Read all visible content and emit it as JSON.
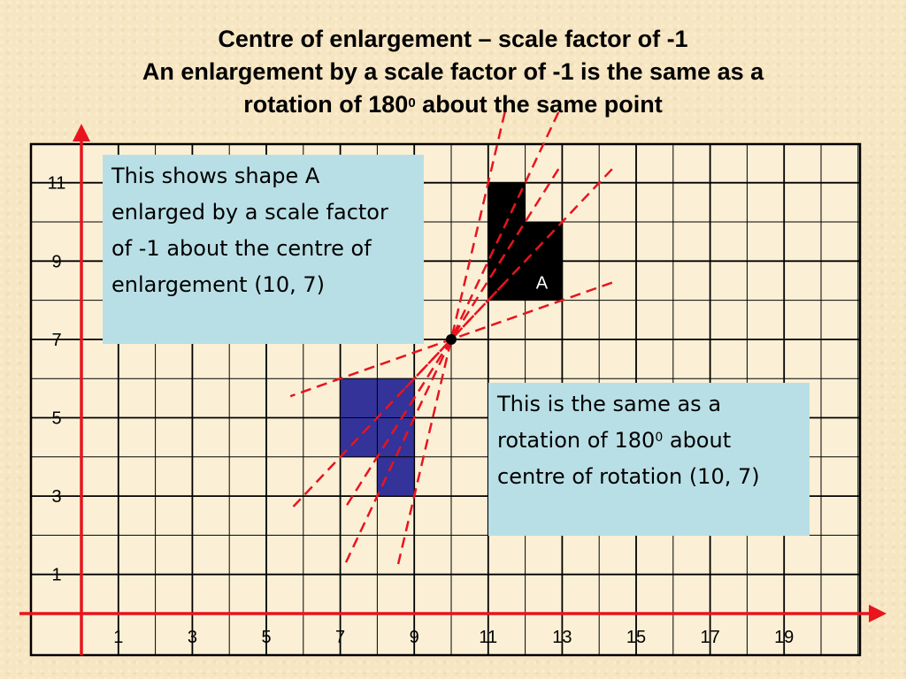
{
  "title": {
    "line1": "Centre of enlargement – scale factor of -1",
    "line2": "An enlargement by a scale factor of -1 is the same as a",
    "line3_pre": "rotation of 180",
    "line3_sup": "0",
    "line3_post": " about the same point"
  },
  "diagram": {
    "x_range": [
      0,
      21
    ],
    "y_range": [
      0,
      12
    ],
    "x_tick_labels": [
      "1",
      "3",
      "5",
      "7",
      "9",
      "11",
      "13",
      "15",
      "17",
      "19"
    ],
    "y_tick_labels": [
      "1",
      "3",
      "5",
      "7",
      "9",
      "11"
    ],
    "centre": [
      10,
      7
    ],
    "shape_a": {
      "label": "A",
      "fill": "#000000",
      "vertices": [
        [
          11,
          11
        ],
        [
          12,
          11
        ],
        [
          12,
          10
        ],
        [
          13,
          10
        ],
        [
          13,
          8
        ],
        [
          11,
          8
        ]
      ]
    },
    "image_shape": {
      "fill": "#333399",
      "vertices": [
        [
          9,
          3
        ],
        [
          8,
          3
        ],
        [
          8,
          4
        ],
        [
          7,
          4
        ],
        [
          7,
          6
        ],
        [
          9,
          6
        ]
      ]
    },
    "ray_lines": [
      {
        "from": [
          11,
          11
        ],
        "to": [
          9,
          3
        ]
      },
      {
        "from": [
          12,
          11
        ],
        "to": [
          8,
          3
        ]
      },
      {
        "from": [
          12,
          10
        ],
        "to": [
          8,
          4
        ]
      },
      {
        "from": [
          13,
          10
        ],
        "to": [
          7,
          4
        ]
      },
      {
        "from": [
          13,
          8
        ],
        "to": [
          7,
          6
        ]
      },
      {
        "from": [
          11,
          8
        ],
        "to": [
          9,
          6
        ]
      }
    ],
    "colors": {
      "axis": "#e8141e",
      "ray": "#e8141e",
      "grid": "#000000"
    }
  },
  "note1": {
    "text": "This shows shape A enlarged by a scale factor of -1 about the centre of enlargement (10, 7)"
  },
  "note2": {
    "pre": "This is the same as a rotation of 180",
    "sup": "0",
    "post": " about centre of rotation (10, 7)"
  }
}
